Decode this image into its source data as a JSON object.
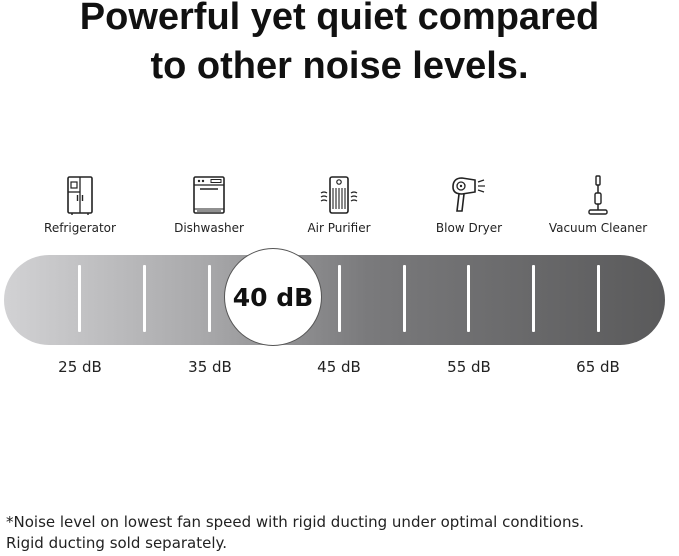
{
  "headline": {
    "line1": "Powerful yet quiet compared",
    "line2": "to other noise levels."
  },
  "appliances": [
    {
      "label": "Refrigerator",
      "icon": "refrigerator-icon"
    },
    {
      "label": "Dishwasher",
      "icon": "dishwasher-icon"
    },
    {
      "label": "Air Purifier",
      "icon": "air-purifier-icon"
    },
    {
      "label": "Blow Dryer",
      "icon": "blow-dryer-icon"
    },
    {
      "label": "Vacuum Cleaner",
      "icon": "vacuum-cleaner-icon"
    }
  ],
  "scale": {
    "labels": [
      "25 dB",
      "35 dB",
      "45 dB",
      "55 dB",
      "65 dB"
    ],
    "highlight": "40 dB",
    "gradient_colors": [
      "#d2d2d4",
      "#5a5a5b"
    ]
  },
  "footnote": {
    "line1": "*Noise level on lowest fan speed with rigid ducting under optimal conditions.",
    "line2": "Rigid ducting sold separately."
  }
}
